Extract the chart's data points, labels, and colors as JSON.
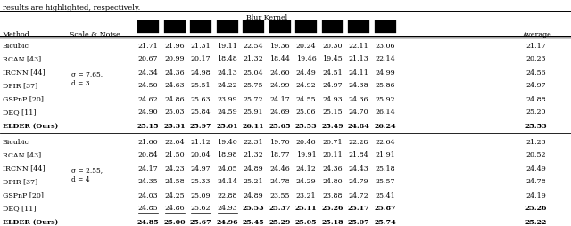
{
  "title": "results are highlighted, respectively.",
  "blur_kernel_label": "Blur Kernel",
  "group1_label": "σ = 7.65,\nd = 3",
  "group2_label": "σ = 2.55,\nd = 4",
  "rows_g1": [
    [
      "Bicubic",
      "21.71",
      "21.96",
      "21.31",
      "19.11",
      "22.54",
      "19.36",
      "20.24",
      "20.30",
      "22.11",
      "23.06",
      "21.17"
    ],
    [
      "RCAN [43]",
      "20.67",
      "20.99",
      "20.17",
      "18.48",
      "21.32",
      "18.44",
      "19.46",
      "19.45",
      "21.13",
      "22.14",
      "20.23"
    ],
    [
      "IRCNN [44]",
      "24.34",
      "24.36",
      "24.98",
      "24.13",
      "25.04",
      "24.60",
      "24.49",
      "24.51",
      "24.11",
      "24.99",
      "24.56"
    ],
    [
      "DPIR [37]",
      "24.50",
      "24.63",
      "25.51",
      "24.22",
      "25.75",
      "24.99",
      "24.92",
      "24.97",
      "24.38",
      "25.86",
      "24.97"
    ],
    [
      "GSPnP [20]",
      "24.62",
      "24.86",
      "25.63",
      "23.99",
      "25.72",
      "24.17",
      "24.55",
      "24.93",
      "24.36",
      "25.92",
      "24.88"
    ],
    [
      "DEQ [11]",
      "24.90",
      "25.03",
      "25.84",
      "24.59",
      "25.91",
      "24.69",
      "25.06",
      "25.15",
      "24.70",
      "26.14",
      "25.20"
    ],
    [
      "ELDER (Ours)",
      "25.15",
      "25.31",
      "25.97",
      "25.01",
      "26.11",
      "25.65",
      "25.53",
      "25.49",
      "24.84",
      "26.24",
      "25.53"
    ]
  ],
  "rows_g2": [
    [
      "Bicubic",
      "21.60",
      "22.04",
      "21.12",
      "19.40",
      "22.31",
      "19.70",
      "20.46",
      "20.71",
      "22.28",
      "22.64",
      "21.23"
    ],
    [
      "RCAN [43]",
      "20.84",
      "21.50",
      "20.04",
      "18.98",
      "21.32",
      "18.77",
      "19.91",
      "20.11",
      "21.84",
      "21.91",
      "20.52"
    ],
    [
      "IRCNN [44]",
      "24.17",
      "24.23",
      "24.97",
      "24.05",
      "24.89",
      "24.46",
      "24.12",
      "24.36",
      "24.43",
      "25.18",
      "24.49"
    ],
    [
      "DPIR [37]",
      "24.35",
      "24.58",
      "25.33",
      "24.14",
      "25.21",
      "24.78",
      "24.29",
      "24.80",
      "24.79",
      "25.57",
      "24.78"
    ],
    [
      "GSPnP [20]",
      "24.03",
      "24.25",
      "25.09",
      "22.88",
      "24.89",
      "23.55",
      "23.21",
      "23.88",
      "24.72",
      "25.41",
      "24.19"
    ],
    [
      "DEQ [11]",
      "24.85",
      "24.86",
      "25.62",
      "24.93",
      "25.53",
      "25.37",
      "25.11",
      "25.26",
      "25.17",
      "25.87",
      "25.26"
    ],
    [
      "ELDER (Ours)",
      "24.85",
      "25.00",
      "25.67",
      "24.96",
      "25.45",
      "25.29",
      "25.05",
      "25.18",
      "25.07",
      "25.74",
      "25.22"
    ]
  ],
  "ul_g1_row5": [
    0,
    1,
    2,
    3,
    4,
    5,
    6,
    7,
    8,
    9,
    10
  ],
  "ul_g1_row6": [],
  "ul_g2_row5": [
    0,
    1,
    2,
    3
  ],
  "ul_g2_row6": [
    1,
    4,
    5,
    6,
    7,
    8,
    9,
    10
  ],
  "bold_g1_row6_all": true,
  "bold_g2_row5_cols": [
    4,
    5,
    6,
    7,
    8,
    9,
    10
  ],
  "bold_g2_row6_all": true,
  "background": "#ffffff"
}
